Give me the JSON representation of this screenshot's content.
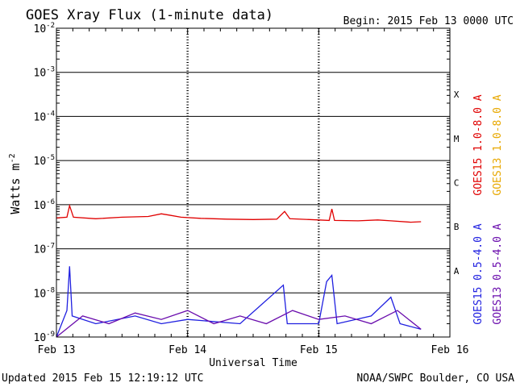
{
  "chart_data": {
    "type": "line",
    "title": "GOES Xray Flux (1-minute data)",
    "begin_label": "Begin:  2015 Feb 13 0000 UTC",
    "xlabel": "Universal Time",
    "ylabel": "Watts m",
    "ylabel_sup": "-2",
    "x_ticks": [
      "Feb 13",
      "Feb 14",
      "Feb 15",
      "Feb 16"
    ],
    "y_ticks": [
      {
        "base": "10",
        "exp": "-2"
      },
      {
        "base": "10",
        "exp": "-3"
      },
      {
        "base": "10",
        "exp": "-4"
      },
      {
        "base": "10",
        "exp": "-5"
      },
      {
        "base": "10",
        "exp": "-6"
      },
      {
        "base": "10",
        "exp": "-7"
      },
      {
        "base": "10",
        "exp": "-8"
      },
      {
        "base": "10",
        "exp": "-9"
      }
    ],
    "y_scale": "log",
    "ylim": [
      1e-09,
      0.01
    ],
    "xlim_days": [
      0,
      3
    ],
    "flare_classes": [
      "X",
      "M",
      "C",
      "B",
      "A"
    ],
    "legend": [
      {
        "name": "GOES15 1.0-8.0 A",
        "color": "#e00000"
      },
      {
        "name": "GOES13 1.0-8.0 A",
        "color": "#e8a800"
      },
      {
        "name": "GOES15 0.5-4.0 A",
        "color": "#2020e0"
      },
      {
        "name": "GOES13 0.5-4.0 A",
        "color": "#6a0dad"
      }
    ],
    "series": [
      {
        "name": "GOES15 1.0-8.0 A",
        "color": "#e00000",
        "points": [
          [
            0.0,
            5e-07
          ],
          [
            0.08,
            5.2e-07
          ],
          [
            0.1,
            9.5e-07
          ],
          [
            0.13,
            5.2e-07
          ],
          [
            0.3,
            4.8e-07
          ],
          [
            0.5,
            5.2e-07
          ],
          [
            0.7,
            5.4e-07
          ],
          [
            0.8,
            6.2e-07
          ],
          [
            0.86,
            5.8e-07
          ],
          [
            0.95,
            5.2e-07
          ],
          [
            1.1,
            4.9e-07
          ],
          [
            1.3,
            4.7e-07
          ],
          [
            1.5,
            4.6e-07
          ],
          [
            1.68,
            4.7e-07
          ],
          [
            1.74,
            7e-07
          ],
          [
            1.78,
            4.8e-07
          ],
          [
            2.0,
            4.5e-07
          ],
          [
            2.08,
            4.4e-07
          ],
          [
            2.1,
            8e-07
          ],
          [
            2.12,
            4.4e-07
          ],
          [
            2.3,
            4.3e-07
          ],
          [
            2.45,
            4.5e-07
          ],
          [
            2.55,
            4.3e-07
          ],
          [
            2.7,
            4e-07
          ],
          [
            2.78,
            4.1e-07
          ]
        ]
      },
      {
        "name": "GOES15 0.5-4.0 A",
        "color": "#2020e0",
        "points": [
          [
            0.0,
            1e-09
          ],
          [
            0.08,
            4e-09
          ],
          [
            0.1,
            4e-08
          ],
          [
            0.12,
            3e-09
          ],
          [
            0.3,
            2e-09
          ],
          [
            0.6,
            3e-09
          ],
          [
            0.8,
            2e-09
          ],
          [
            1.0,
            2.5e-09
          ],
          [
            1.4,
            2e-09
          ],
          [
            1.73,
            1.5e-08
          ],
          [
            1.76,
            2e-09
          ],
          [
            2.0,
            2e-09
          ],
          [
            2.06,
            1.8e-08
          ],
          [
            2.1,
            2.5e-08
          ],
          [
            2.14,
            2e-09
          ],
          [
            2.4,
            3e-09
          ],
          [
            2.55,
            8e-09
          ],
          [
            2.62,
            2e-09
          ],
          [
            2.78,
            1.5e-09
          ]
        ]
      },
      {
        "name": "GOES13 0.5-4.0 A",
        "color": "#6a0dad",
        "points": [
          [
            0.0,
            1e-09
          ],
          [
            0.2,
            3e-09
          ],
          [
            0.4,
            2e-09
          ],
          [
            0.6,
            3.5e-09
          ],
          [
            0.8,
            2.5e-09
          ],
          [
            1.0,
            4e-09
          ],
          [
            1.2,
            2e-09
          ],
          [
            1.4,
            3e-09
          ],
          [
            1.6,
            2e-09
          ],
          [
            1.8,
            4e-09
          ],
          [
            2.0,
            2.5e-09
          ],
          [
            2.2,
            3e-09
          ],
          [
            2.4,
            2e-09
          ],
          [
            2.6,
            4e-09
          ],
          [
            2.78,
            1.5e-09
          ]
        ]
      }
    ]
  },
  "footer": {
    "updated": "Updated 2015 Feb 15 12:19:12 UTC",
    "source": "NOAA/SWPC Boulder, CO USA"
  }
}
